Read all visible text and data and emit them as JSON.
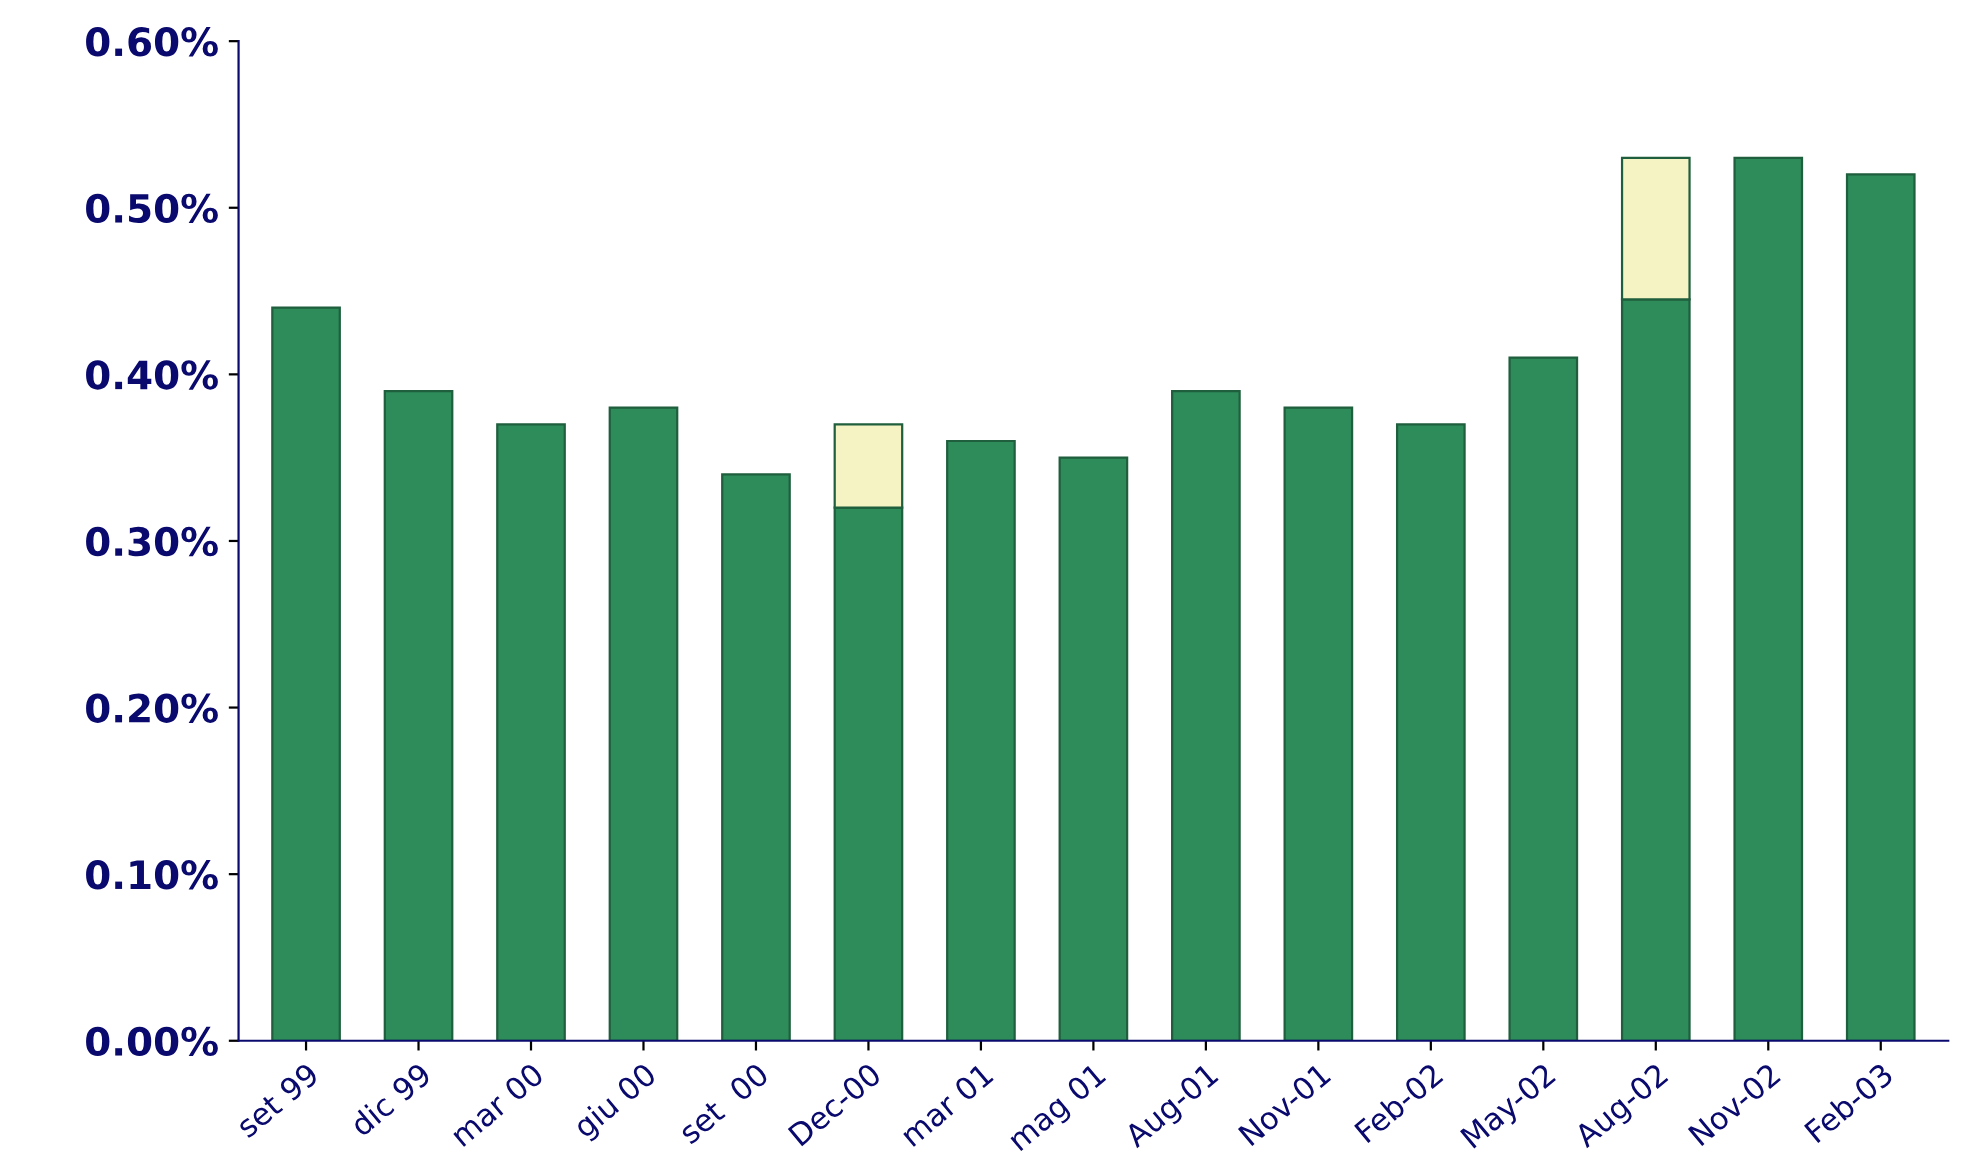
{
  "chart_data": {
    "type": "bar",
    "stacked": true,
    "categories": [
      "set 99",
      "dic 99",
      "mar 00",
      "giu 00",
      "set  00",
      "Dec-00",
      "mar 01",
      "mag 01",
      "Aug-01",
      "Nov-01",
      "Feb-02",
      "May-02",
      "Aug-02",
      "Nov-02",
      "Feb-03"
    ],
    "series": [
      {
        "color": "#2e8b5a",
        "values": [
          0.44,
          0.39,
          0.37,
          0.38,
          0.34,
          0.32,
          0.36,
          0.35,
          0.39,
          0.38,
          0.37,
          0.41,
          0.445,
          0.53,
          0.52
        ]
      },
      {
        "color": "#f5f2c4",
        "values": [
          null,
          null,
          null,
          null,
          null,
          0.05,
          null,
          null,
          null,
          null,
          null,
          null,
          0.085,
          null,
          null
        ]
      }
    ],
    "ylim": [
      0,
      0.6
    ],
    "yticks": [
      {
        "value": 0,
        "label": "0.00%"
      },
      {
        "value": 0.1,
        "label": "0.10%"
      },
      {
        "value": 0.2,
        "label": "0.20%"
      },
      {
        "value": 0.3,
        "label": "0.30%"
      },
      {
        "value": 0.4,
        "label": "0.40%"
      },
      {
        "value": 0.5,
        "label": "0.50%"
      },
      {
        "value": 0.6,
        "label": "0.60%"
      }
    ],
    "grid": false,
    "legend": false
  }
}
